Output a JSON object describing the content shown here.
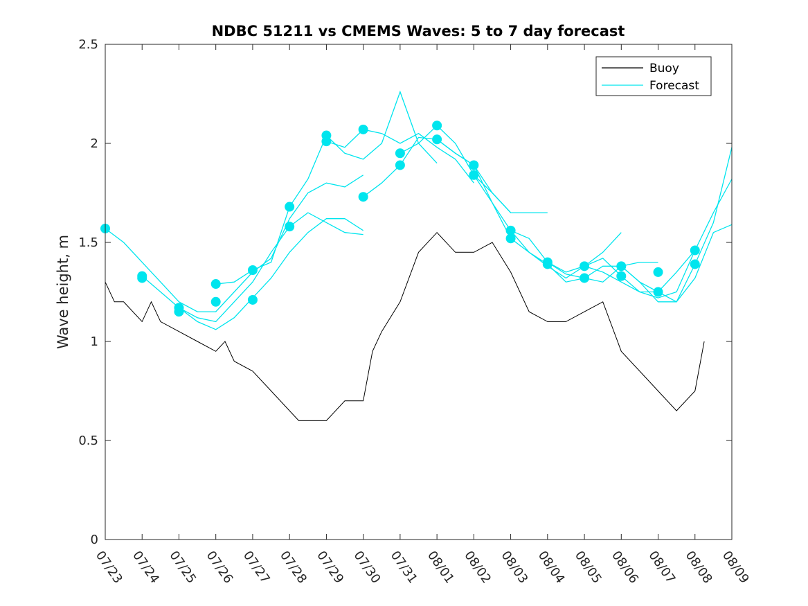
{
  "chart_data": {
    "type": "line",
    "title": "NDBC 51211 vs CMEMS Waves: 5 to 7 day forecast",
    "xlabel": "",
    "ylabel": "Wave height, m",
    "xlim": [
      "07/23",
      "08/09"
    ],
    "ylim": [
      0,
      2.5
    ],
    "x_ticks": [
      "07/23",
      "07/24",
      "07/25",
      "07/26",
      "07/27",
      "07/28",
      "07/29",
      "07/30",
      "07/31",
      "08/01",
      "08/02",
      "08/03",
      "08/04",
      "08/05",
      "08/06",
      "08/07",
      "08/08",
      "08/09"
    ],
    "y_ticks": [
      "0",
      "0.5",
      "1",
      "1.5",
      "2",
      "2.5"
    ],
    "grid": false,
    "legend": {
      "position": "top-right",
      "entries": [
        {
          "label": "Buoy",
          "color": "#000000"
        },
        {
          "label": "Forecast",
          "color": "#00e5ee"
        }
      ]
    },
    "colors": {
      "buoy": "#000000",
      "forecast": "#00e5ee"
    },
    "series": [
      {
        "name": "Buoy",
        "x": [
          "07/23 00:00",
          "07/23 06:00",
          "07/23 12:00",
          "07/24 00:00",
          "07/24 06:00",
          "07/24 12:00",
          "07/25 00:00",
          "07/25 12:00",
          "07/26 00:00",
          "07/26 06:00",
          "07/26 12:00",
          "07/27 00:00",
          "07/27 12:00",
          "07/28 00:00",
          "07/28 12:00",
          "07/28 06:00",
          "07/29 00:00",
          "07/29 12:00",
          "07/30 00:00",
          "07/30 06:00",
          "07/30 12:00",
          "07/31 00:00",
          "07/31 12:00",
          "08/01 00:00",
          "08/01 12:00",
          "08/02 00:00",
          "08/02 12:00",
          "08/03 00:00",
          "08/03 12:00",
          "08/04 00:00",
          "08/04 12:00",
          "08/05 00:00",
          "08/05 12:00",
          "08/06 00:00",
          "08/06 12:00",
          "08/07 00:00",
          "08/07 12:00",
          "08/08 00:00",
          "08/08 06:00"
        ],
        "values": [
          1.3,
          1.2,
          1.2,
          1.1,
          1.2,
          1.1,
          1.05,
          1.0,
          0.95,
          1.0,
          0.9,
          0.85,
          0.75,
          0.65,
          0.6,
          0.6,
          0.6,
          0.7,
          0.7,
          0.95,
          1.05,
          1.2,
          1.45,
          1.55,
          1.45,
          1.45,
          1.5,
          1.35,
          1.15,
          1.1,
          1.1,
          1.15,
          1.2,
          0.95,
          0.85,
          0.75,
          0.65,
          0.75,
          1.0
        ]
      },
      {
        "name": "Forecast",
        "runs": [
          {
            "x": [
              "07/23 00:00",
              "07/23 12:00",
              "07/24 00:00",
              "07/24 12:00",
              "07/25 00:00",
              "07/25 12:00",
              "07/26 00:00",
              "07/26 12:00",
              "07/27 00:00",
              "07/27 12:00",
              "07/28 00:00",
              "07/28 12:00",
              "07/29 00:00",
              "07/29 12:00",
              "07/30 00:00"
            ],
            "values": [
              1.57,
              1.5,
              1.4,
              1.3,
              1.2,
              1.15,
              1.15,
              1.25,
              1.35,
              1.42,
              1.62,
              1.75,
              1.8,
              1.78,
              1.84
            ]
          },
          {
            "x": [
              "07/24 00:00",
              "07/24 12:00",
              "07/25 00:00",
              "07/25 12:00",
              "07/26 00:00",
              "07/26 12:00",
              "07/27 00:00",
              "07/27 12:00",
              "07/28 00:00",
              "07/28 12:00",
              "07/29 00:00",
              "07/29 12:00",
              "07/30 00:00"
            ],
            "values": [
              1.33,
              1.25,
              1.17,
              1.12,
              1.1,
              1.2,
              1.3,
              1.45,
              1.58,
              1.65,
              1.6,
              1.55,
              1.54
            ]
          },
          {
            "x": [
              "07/25 00:00",
              "07/25 12:00",
              "07/26 00:00",
              "07/26 12:00",
              "07/27 00:00",
              "07/27 12:00",
              "07/28 00:00",
              "07/28 12:00",
              "07/29 00:00",
              "07/29 12:00",
              "07/30 00:00"
            ],
            "values": [
              1.17,
              1.1,
              1.06,
              1.12,
              1.22,
              1.32,
              1.45,
              1.55,
              1.62,
              1.62,
              1.56
            ]
          },
          {
            "x": [
              "07/26 00:00",
              "07/26 12:00",
              "07/27 00:00",
              "07/27 12:00",
              "07/28 00:00",
              "07/28 12:00",
              "07/29 00:00",
              "07/29 12:00",
              "07/30 00:00",
              "07/30 12:00",
              "07/31 00:00",
              "07/31 12:00",
              "08/01 00:00"
            ],
            "values": [
              1.29,
              1.3,
              1.36,
              1.4,
              1.68,
              1.82,
              2.04,
              1.95,
              1.92,
              2.0,
              2.26,
              2.0,
              1.9
            ]
          },
          {
            "x": [
              "07/29 00:00",
              "07/29 12:00",
              "07/30 00:00",
              "07/30 12:00",
              "07/31 00:00",
              "07/31 12:00",
              "08/01 00:00",
              "08/01 12:00",
              "08/02 00:00"
            ],
            "values": [
              2.01,
              1.98,
              2.07,
              2.05,
              2.0,
              2.05,
              1.98,
              1.92,
              1.8
            ]
          },
          {
            "x": [
              "07/30 00:00",
              "07/30 12:00",
              "07/31 00:00",
              "07/31 12:00",
              "08/01 00:00",
              "08/01 12:00",
              "08/02 00:00",
              "08/02 12:00",
              "08/03 00:00"
            ],
            "values": [
              1.73,
              1.8,
              1.89,
              2.03,
              2.02,
              1.95,
              1.89,
              1.75,
              1.65
            ]
          },
          {
            "x": [
              "07/31 00:00",
              "07/31 12:00",
              "08/01 00:00",
              "08/01 12:00",
              "08/02 00:00",
              "08/02 12:00",
              "08/03 00:00",
              "08/03 12:00",
              "08/04 00:00"
            ],
            "values": [
              1.95,
              2.0,
              2.09,
              2.0,
              1.84,
              1.75,
              1.65,
              1.65,
              1.65
            ]
          },
          {
            "x": [
              "08/01 00:00",
              "08/01 12:00",
              "08/02 00:00",
              "08/02 12:00",
              "08/03 00:00",
              "08/03 12:00",
              "08/04 00:00",
              "08/04 12:00",
              "08/05 00:00",
              "08/05 12:00",
              "08/06 00:00"
            ],
            "values": [
              2.02,
              1.95,
              1.89,
              1.7,
              1.56,
              1.52,
              1.4,
              1.35,
              1.38,
              1.45,
              1.55
            ]
          },
          {
            "x": [
              "08/02 00:00",
              "08/02 12:00",
              "08/03 00:00",
              "08/03 12:00",
              "08/04 00:00",
              "08/04 12:00",
              "08/05 00:00",
              "08/05 12:00",
              "08/06 00:00",
              "08/06 12:00",
              "08/07 00:00"
            ],
            "values": [
              1.84,
              1.7,
              1.52,
              1.45,
              1.39,
              1.3,
              1.32,
              1.38,
              1.38,
              1.4,
              1.4
            ]
          },
          {
            "x": [
              "08/03 00:00",
              "08/03 12:00",
              "08/04 00:00",
              "08/04 12:00",
              "08/05 00:00",
              "08/05 12:00",
              "08/06 00:00",
              "08/06 12:00",
              "08/07 00:00",
              "08/07 12:00",
              "08/08 00:00"
            ],
            "values": [
              1.56,
              1.45,
              1.38,
              1.32,
              1.38,
              1.42,
              1.33,
              1.25,
              1.25,
              1.35,
              1.46
            ]
          },
          {
            "x": [
              "08/04 00:00",
              "08/04 12:00",
              "08/05 00:00",
              "08/05 12:00",
              "08/06 00:00",
              "08/06 12:00",
              "08/07 00:00",
              "08/07 12:00",
              "08/08 00:00",
              "08/08 12:00",
              "08/09 00:00"
            ],
            "values": [
              1.4,
              1.34,
              1.32,
              1.3,
              1.38,
              1.3,
              1.2,
              1.2,
              1.39,
              1.6,
              1.98
            ]
          },
          {
            "x": [
              "08/05 00:00",
              "08/05 12:00",
              "08/06 00:00",
              "08/06 12:00",
              "08/07 00:00",
              "08/07 12:00",
              "08/08 00:00",
              "08/08 12:00",
              "08/09 00:00"
            ],
            "values": [
              1.38,
              1.35,
              1.3,
              1.25,
              1.22,
              1.25,
              1.46,
              1.65,
              1.82
            ]
          },
          {
            "x": [
              "08/06 00:00",
              "08/06 12:00",
              "08/07 00:00",
              "08/07 12:00",
              "08/08 00:00",
              "08/08 12:00",
              "08/09 00:00"
            ],
            "values": [
              1.38,
              1.3,
              1.25,
              1.2,
              1.32,
              1.55,
              1.59
            ]
          }
        ],
        "markers": [
          {
            "x": "07/23 00:00",
            "y": 1.57
          },
          {
            "x": "07/24 00:00",
            "y": 1.33
          },
          {
            "x": "07/24 00:00",
            "y": 1.32
          },
          {
            "x": "07/25 00:00",
            "y": 1.17
          },
          {
            "x": "07/25 00:00",
            "y": 1.15
          },
          {
            "x": "07/26 00:00",
            "y": 1.29
          },
          {
            "x": "07/26 00:00",
            "y": 1.2
          },
          {
            "x": "07/27 00:00",
            "y": 1.36
          },
          {
            "x": "07/27 00:00",
            "y": 1.21
          },
          {
            "x": "07/28 00:00",
            "y": 1.68
          },
          {
            "x": "07/28 00:00",
            "y": 1.58
          },
          {
            "x": "07/29 00:00",
            "y": 2.04
          },
          {
            "x": "07/29 00:00",
            "y": 2.01
          },
          {
            "x": "07/30 00:00",
            "y": 2.07
          },
          {
            "x": "07/30 00:00",
            "y": 1.73
          },
          {
            "x": "07/31 00:00",
            "y": 1.95
          },
          {
            "x": "07/31 00:00",
            "y": 1.89
          },
          {
            "x": "08/01 00:00",
            "y": 2.09
          },
          {
            "x": "08/01 00:00",
            "y": 2.02
          },
          {
            "x": "08/02 00:00",
            "y": 1.89
          },
          {
            "x": "08/02 00:00",
            "y": 1.84
          },
          {
            "x": "08/03 00:00",
            "y": 1.56
          },
          {
            "x": "08/03 00:00",
            "y": 1.52
          },
          {
            "x": "08/04 00:00",
            "y": 1.4
          },
          {
            "x": "08/04 00:00",
            "y": 1.39
          },
          {
            "x": "08/05 00:00",
            "y": 1.38
          },
          {
            "x": "08/05 00:00",
            "y": 1.32
          },
          {
            "x": "08/06 00:00",
            "y": 1.38
          },
          {
            "x": "08/06 00:00",
            "y": 1.33
          },
          {
            "x": "08/07 00:00",
            "y": 1.35
          },
          {
            "x": "08/07 00:00",
            "y": 1.25
          },
          {
            "x": "08/08 00:00",
            "y": 1.46
          },
          {
            "x": "08/08 00:00",
            "y": 1.39
          }
        ]
      }
    ]
  }
}
